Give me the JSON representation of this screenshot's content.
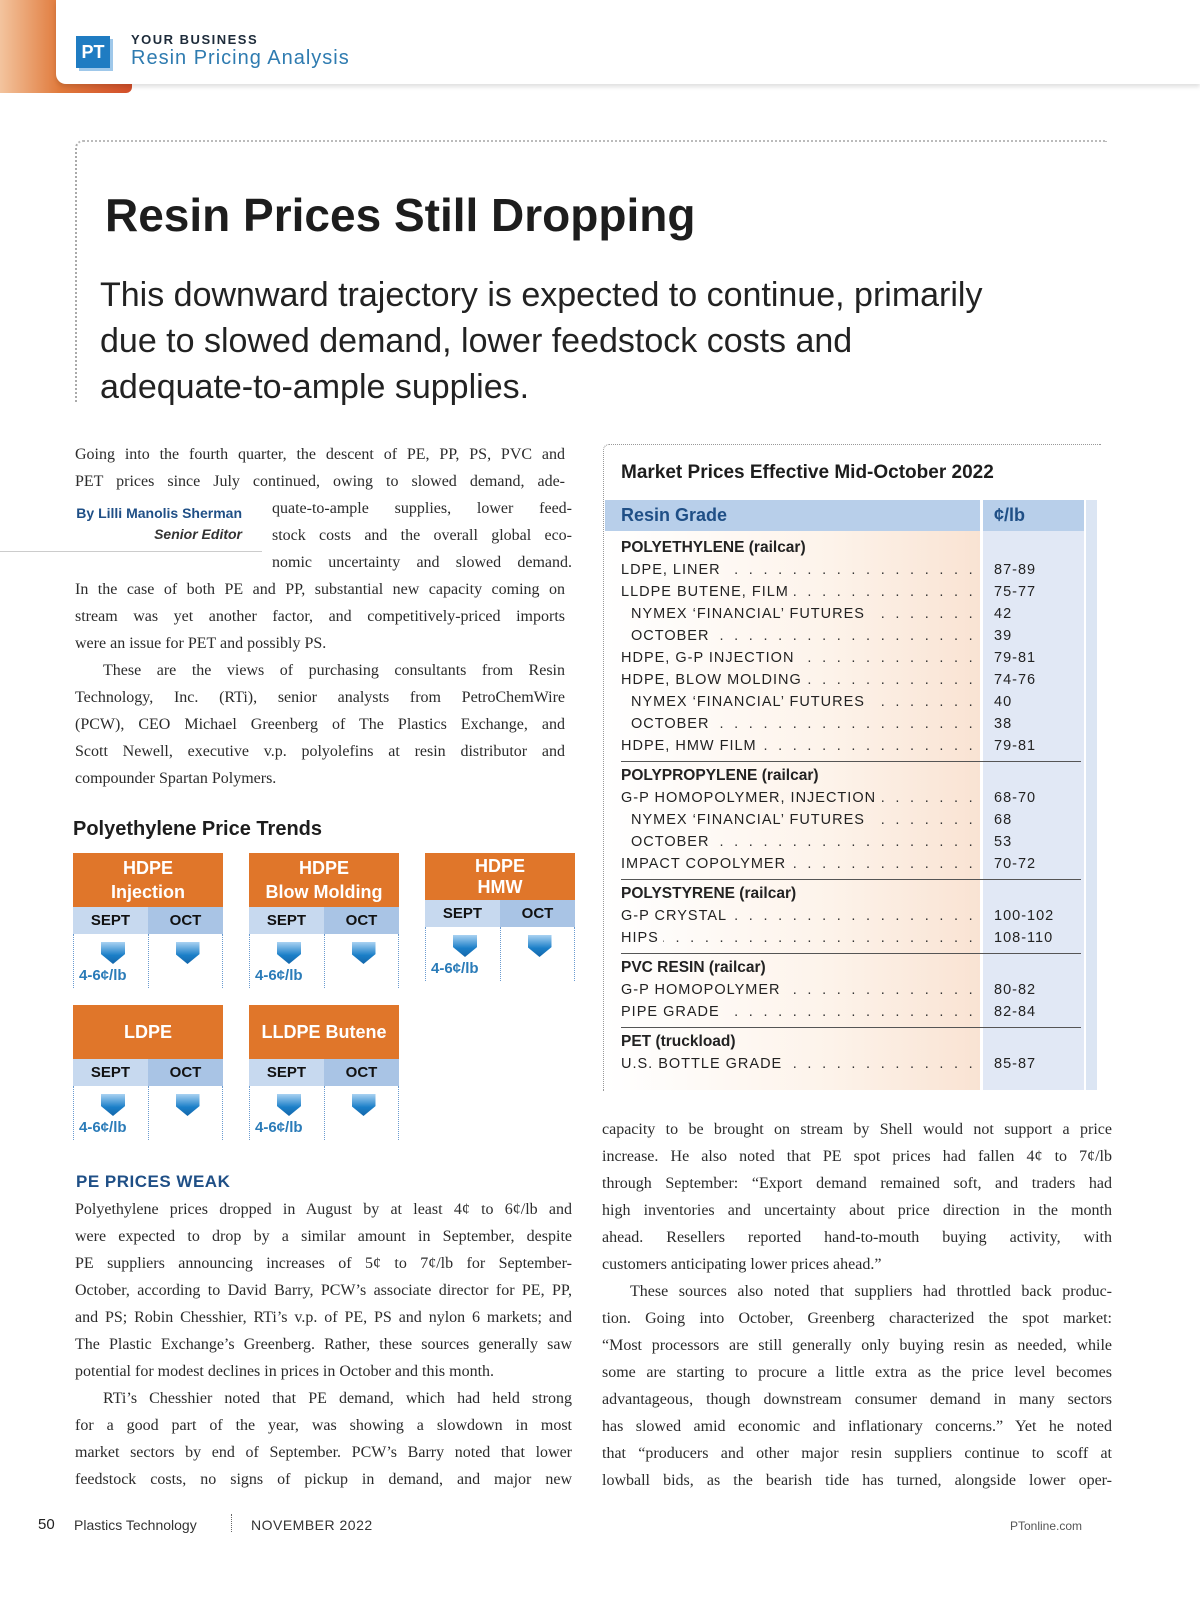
{
  "header": {
    "logo": "PT",
    "kicker": "YOUR BUSINESS",
    "section": "Resin Pricing Analysis"
  },
  "article": {
    "title": "Resin Prices Still Dropping",
    "dek": "This downward trajectory is expected to continue, primarily due to slowed demand, lower feedstock costs and adequate-to-ample supplies.",
    "byline": {
      "author": "By Lilli Manolis Sherman",
      "role": "Senior Editor"
    },
    "intro_full_top": [
      "Going into the fourth quarter, the descent of PE, PP, PS, PVC and",
      "PET prices since July continued, owing to slowed demand, ade-"
    ],
    "intro_narrow": [
      "quate-to-ample supplies, lower feed-",
      "stock costs and the overall global eco-",
      "nomic uncertainty and slowed demand."
    ],
    "intro_paragraphs": [
      [
        "In the case of both PE and PP, substantial new capacity coming on",
        "stream was yet another factor, and competitively-priced imports",
        "were an issue for PET and possibly PS."
      ],
      [
        "These are the views of purchasing consultants from Resin",
        "Technology, Inc. (RTi), senior analysts from PetroChemWire",
        "(PCW), CEO Michael Greenberg of The Plastics Exchange, and",
        "Scott Newell, executive v.p. polyolefins at resin distributor and",
        "compounder Spartan Polymers."
      ]
    ],
    "subhead": "PE PRICES WEAK",
    "left_paragraphs": [
      [
        "Polyethylene prices dropped in August by at least 4¢ to 6¢/lb and",
        "were expected to drop by a similar amount in September, despite",
        "PE suppliers announcing increases of 5¢ to 7¢/lb for September-",
        "October, according to David Barry, PCW’s associate director for PE, PP,",
        "and PS; Robin Chesshier, RTi’s v.p. of PE, PS and nylon 6 markets; and",
        "The Plastic Exchange’s Greenberg. Rather, these sources generally saw",
        "potential for modest declines in prices in October and this month."
      ],
      [
        "RTi’s Chesshier noted that PE demand, which had held strong",
        "for a good part of the year, was showing a slowdown in most",
        "market sectors by end of September. PCW’s Barry noted that lower",
        "feedstock costs, no signs of pickup in demand, and major new"
      ]
    ],
    "right_paragraphs": [
      [
        "capacity to be brought on stream by Shell would not support a price",
        "increase. He also noted that PE spot prices had fallen 4¢ to 7¢/lb",
        "through September: “Export demand remained soft, and traders had",
        "high inventories and uncertainty about price direction in the month",
        "ahead. Resellers reported hand-to-mouth buying activity, with",
        "customers anticipating lower prices ahead.”"
      ],
      [
        "These sources also noted that suppliers had throttled back produc-",
        "tion. Going into October, Greenberg characterized the spot market:",
        "“Most processors are still generally only buying resin as needed, while",
        "some are starting to procure a little extra as the price level becomes",
        "advantageous, though downstream consumer demand in many sectors",
        "has slowed amid economic and inflationary concerns.”  Yet he noted",
        "that “producers and other major resin suppliers continue to scoff at",
        "lowball bids, as the bearish tide has turned, alongside lower oper-"
      ]
    ]
  },
  "trends": {
    "title": "Polyethylene Price Trends",
    "tiles": [
      {
        "line1": "HDPE",
        "line2": "Injection",
        "sept": "SEPT",
        "oct": "OCT",
        "sept_change": "4-6¢/lb",
        "sept_dir": "down",
        "oct_dir": "down"
      },
      {
        "line1": "HDPE",
        "line2": "Blow Molding",
        "sept": "SEPT",
        "oct": "OCT",
        "sept_change": "4-6¢/lb",
        "sept_dir": "down",
        "oct_dir": "down"
      },
      {
        "line1": "HDPE",
        "line2": "HMW",
        "sept": "SEPT",
        "oct": "OCT",
        "sept_change": "4-6¢/lb",
        "sept_dir": "down",
        "oct_dir": "down"
      },
      {
        "line1": "LDPE",
        "line2": "",
        "sept": "SEPT",
        "oct": "OCT",
        "sept_change": "4-6¢/lb",
        "sept_dir": "down",
        "oct_dir": "down"
      },
      {
        "line1": "LLDPE Butene",
        "line2": "",
        "sept": "SEPT",
        "oct": "OCT",
        "sept_change": "4-6¢/lb",
        "sept_dir": "down",
        "oct_dir": "down"
      }
    ]
  },
  "market_table": {
    "title": "Market Prices Effective Mid-October 2022",
    "col_grade": "Resin Grade",
    "col_price": "¢/lb",
    "groups": [
      {
        "name": "POLYETHYLENE (railcar)",
        "rows": [
          {
            "grade": "LDPE, LINER",
            "price": "87-89",
            "sub": false
          },
          {
            "grade": "LLDPE BUTENE, FILM",
            "price": "75-77",
            "sub": false
          },
          {
            "grade": "NYMEX ‘FINANCIAL’ FUTURES",
            "price": "42",
            "sub": true
          },
          {
            "grade": "OCTOBER",
            "price": "39",
            "sub": true
          },
          {
            "grade": "HDPE, G-P INJECTION",
            "price": "79-81",
            "sub": false
          },
          {
            "grade": "HDPE, BLOW MOLDING",
            "price": "74-76",
            "sub": false
          },
          {
            "grade": "NYMEX ‘FINANCIAL’ FUTURES",
            "price": "40",
            "sub": true
          },
          {
            "grade": "OCTOBER",
            "price": "38",
            "sub": true
          },
          {
            "grade": "HDPE, HMW FILM",
            "price": "79-81",
            "sub": false
          }
        ]
      },
      {
        "name": "POLYPROPYLENE (railcar)",
        "rows": [
          {
            "grade": "G-P HOMOPOLYMER, INJECTION",
            "price": "68-70",
            "sub": false
          },
          {
            "grade": "NYMEX ‘FINANCIAL’ FUTURES",
            "price": "68",
            "sub": true
          },
          {
            "grade": "OCTOBER",
            "price": "53",
            "sub": true
          },
          {
            "grade": "IMPACT COPOLYMER",
            "price": "70-72",
            "sub": false
          }
        ]
      },
      {
        "name": "POLYSTYRENE (railcar)",
        "rows": [
          {
            "grade": "G-P CRYSTAL",
            "price": "100-102",
            "sub": false
          },
          {
            "grade": "HIPS",
            "price": "108-110",
            "sub": false
          }
        ]
      },
      {
        "name": "PVC RESIN (railcar)",
        "rows": [
          {
            "grade": "G-P HOMOPOLYMER",
            "price": "80-82",
            "sub": false
          },
          {
            "grade": "PIPE GRADE",
            "price": "82-84",
            "sub": false
          }
        ]
      },
      {
        "name": "PET (truckload)",
        "rows": [
          {
            "grade": "U.S. BOTTLE GRADE",
            "price": "85-87",
            "sub": false
          }
        ]
      }
    ]
  },
  "footer": {
    "page": "50",
    "publication": "Plastics Technology",
    "date": "NOVEMBER 2022",
    "url": "PTonline.com"
  },
  "colors": {
    "accent_orange": "#e0762a",
    "brand_blue": "#1f7cc2",
    "heading_blue": "#1f4f86",
    "table_header": "#b8cfea"
  }
}
